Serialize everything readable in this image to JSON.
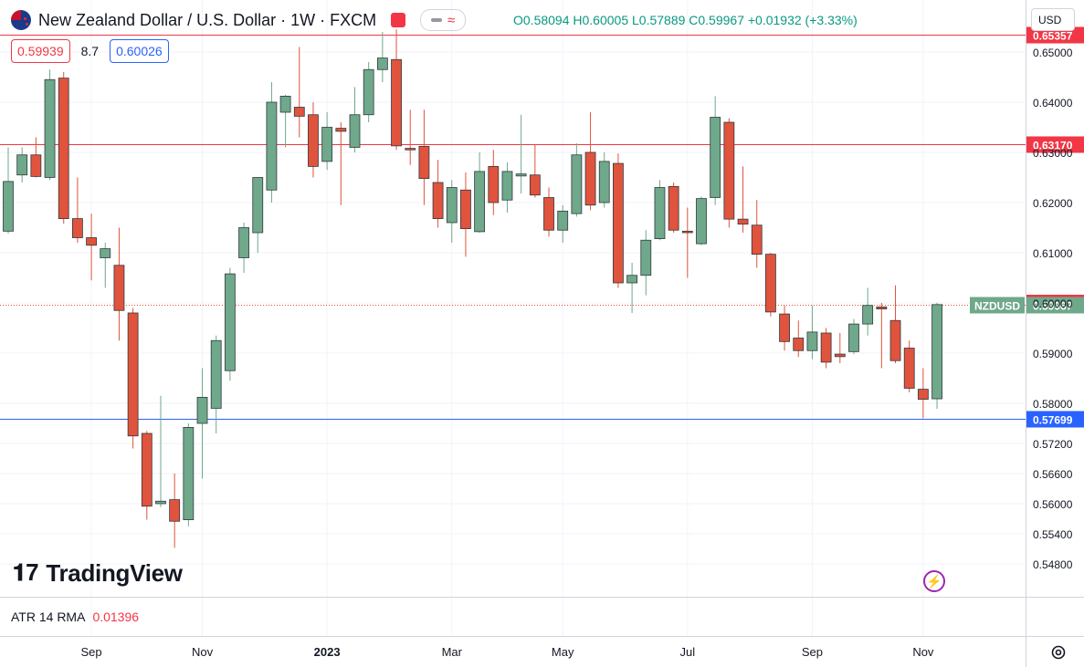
{
  "header": {
    "title": "New Zealand Dollar / U.S. Dollar · 1W · FXCM",
    "ohlc": "O0.58094  H0.60005  L0.57889  C0.59967  +0.01932 (+3.33%)",
    "sell_price": "0.59939",
    "spread": "8.7",
    "buy_price": "0.60026",
    "currency": "USD"
  },
  "logo_text": "TradingView",
  "atr": {
    "label": "ATR 14 RMA",
    "value": "0.01396"
  },
  "chart_data": {
    "type": "candlestick",
    "symbol": "NZDUSD",
    "timeframe": "1W",
    "y_ticks": [
      0.548,
      0.554,
      0.56,
      0.566,
      0.572,
      0.58,
      0.59,
      0.6,
      0.61,
      0.62,
      0.63,
      0.64,
      0.65
    ],
    "y_tick_labels": [
      "0.54800",
      "0.55400",
      "0.56000",
      "0.56600",
      "0.57200",
      "0.58000",
      "0.59000",
      "0.60000",
      "0.61000",
      "0.62000",
      "0.63000",
      "0.64000",
      "0.65000"
    ],
    "x_labels": [
      "Sep",
      "Nov",
      "2023",
      "Mar",
      "May",
      "Jul",
      "Sep",
      "Nov"
    ],
    "x_label_candle_index": [
      6,
      14,
      23,
      32,
      40,
      49,
      58,
      66
    ],
    "horizontal_lines": [
      {
        "value": 0.6535,
        "label": "0.65357",
        "color": "#f23645"
      },
      {
        "value": 0.6317,
        "label": "0.63170",
        "color": "#f23645"
      },
      {
        "value": 0.57699,
        "label": "0.57699",
        "color": "#2962ff"
      }
    ],
    "price_tags": [
      {
        "value": 0.6,
        "label": "0.60000",
        "color": "#f23645"
      }
    ],
    "current": {
      "value": 0.59967,
      "symbol": "NZDUSD",
      "label": "0.59967",
      "color": "#6fa88a"
    },
    "up_color": "#6fa88a",
    "down_color": "#e0533d",
    "candles": [
      {
        "o": 0.6143,
        "h": 0.631,
        "l": 0.6138,
        "c": 0.6242
      },
      {
        "o": 0.6255,
        "h": 0.631,
        "l": 0.624,
        "c": 0.6295
      },
      {
        "o": 0.6295,
        "h": 0.633,
        "l": 0.625,
        "c": 0.6252
      },
      {
        "o": 0.625,
        "h": 0.6465,
        "l": 0.6245,
        "c": 0.6445
      },
      {
        "o": 0.6448,
        "h": 0.646,
        "l": 0.6158,
        "c": 0.6168
      },
      {
        "o": 0.6168,
        "h": 0.625,
        "l": 0.612,
        "c": 0.613
      },
      {
        "o": 0.613,
        "h": 0.6178,
        "l": 0.6045,
        "c": 0.6115
      },
      {
        "o": 0.609,
        "h": 0.612,
        "l": 0.603,
        "c": 0.6108
      },
      {
        "o": 0.6075,
        "h": 0.615,
        "l": 0.5925,
        "c": 0.5985
      },
      {
        "o": 0.598,
        "h": 0.599,
        "l": 0.571,
        "c": 0.5735
      },
      {
        "o": 0.574,
        "h": 0.5745,
        "l": 0.5568,
        "c": 0.5595
      },
      {
        "o": 0.56,
        "h": 0.5815,
        "l": 0.5593,
        "c": 0.5605
      },
      {
        "o": 0.5608,
        "h": 0.566,
        "l": 0.5512,
        "c": 0.5565
      },
      {
        "o": 0.5568,
        "h": 0.576,
        "l": 0.5555,
        "c": 0.5752
      },
      {
        "o": 0.576,
        "h": 0.587,
        "l": 0.565,
        "c": 0.5812
      },
      {
        "o": 0.579,
        "h": 0.5935,
        "l": 0.574,
        "c": 0.5925
      },
      {
        "o": 0.5865,
        "h": 0.607,
        "l": 0.5845,
        "c": 0.6058
      },
      {
        "o": 0.609,
        "h": 0.616,
        "l": 0.606,
        "c": 0.615
      },
      {
        "o": 0.614,
        "h": 0.625,
        "l": 0.61,
        "c": 0.625
      },
      {
        "o": 0.6225,
        "h": 0.644,
        "l": 0.62,
        "c": 0.64
      },
      {
        "o": 0.638,
        "h": 0.6415,
        "l": 0.631,
        "c": 0.6412
      },
      {
        "o": 0.639,
        "h": 0.651,
        "l": 0.633,
        "c": 0.6372
      },
      {
        "o": 0.6375,
        "h": 0.64,
        "l": 0.625,
        "c": 0.6272
      },
      {
        "o": 0.6282,
        "h": 0.638,
        "l": 0.6265,
        "c": 0.635
      },
      {
        "o": 0.6348,
        "h": 0.636,
        "l": 0.6195,
        "c": 0.6342
      },
      {
        "o": 0.631,
        "h": 0.643,
        "l": 0.63,
        "c": 0.6375
      },
      {
        "o": 0.6375,
        "h": 0.648,
        "l": 0.636,
        "c": 0.6465
      },
      {
        "o": 0.6465,
        "h": 0.654,
        "l": 0.644,
        "c": 0.6488
      },
      {
        "o": 0.6485,
        "h": 0.6545,
        "l": 0.6305,
        "c": 0.6313
      },
      {
        "o": 0.6308,
        "h": 0.6385,
        "l": 0.6275,
        "c": 0.6305
      },
      {
        "o": 0.6312,
        "h": 0.6385,
        "l": 0.6195,
        "c": 0.6248
      },
      {
        "o": 0.624,
        "h": 0.6285,
        "l": 0.615,
        "c": 0.6168
      },
      {
        "o": 0.616,
        "h": 0.6245,
        "l": 0.612,
        "c": 0.623
      },
      {
        "o": 0.6225,
        "h": 0.626,
        "l": 0.6092,
        "c": 0.6148
      },
      {
        "o": 0.6142,
        "h": 0.63,
        "l": 0.614,
        "c": 0.6262
      },
      {
        "o": 0.6272,
        "h": 0.6305,
        "l": 0.6175,
        "c": 0.62
      },
      {
        "o": 0.6205,
        "h": 0.628,
        "l": 0.618,
        "c": 0.6262
      },
      {
        "o": 0.6253,
        "h": 0.6375,
        "l": 0.6218,
        "c": 0.6257
      },
      {
        "o": 0.6255,
        "h": 0.6315,
        "l": 0.621,
        "c": 0.6215
      },
      {
        "o": 0.621,
        "h": 0.623,
        "l": 0.6132,
        "c": 0.6145
      },
      {
        "o": 0.6145,
        "h": 0.6195,
        "l": 0.612,
        "c": 0.6183
      },
      {
        "o": 0.6178,
        "h": 0.6318,
        "l": 0.6172,
        "c": 0.6295
      },
      {
        "o": 0.63,
        "h": 0.638,
        "l": 0.6185,
        "c": 0.6195
      },
      {
        "o": 0.62,
        "h": 0.63,
        "l": 0.619,
        "c": 0.6282
      },
      {
        "o": 0.6278,
        "h": 0.6298,
        "l": 0.603,
        "c": 0.604
      },
      {
        "o": 0.604,
        "h": 0.608,
        "l": 0.598,
        "c": 0.6055
      },
      {
        "o": 0.6055,
        "h": 0.6145,
        "l": 0.6015,
        "c": 0.6125
      },
      {
        "o": 0.6128,
        "h": 0.6245,
        "l": 0.6125,
        "c": 0.623
      },
      {
        "o": 0.6232,
        "h": 0.624,
        "l": 0.614,
        "c": 0.6145
      },
      {
        "o": 0.6143,
        "h": 0.619,
        "l": 0.605,
        "c": 0.614
      },
      {
        "o": 0.6118,
        "h": 0.6212,
        "l": 0.6115,
        "c": 0.6208
      },
      {
        "o": 0.621,
        "h": 0.6412,
        "l": 0.6195,
        "c": 0.637
      },
      {
        "o": 0.636,
        "h": 0.6368,
        "l": 0.615,
        "c": 0.6167
      },
      {
        "o": 0.6167,
        "h": 0.6272,
        "l": 0.614,
        "c": 0.6157
      },
      {
        "o": 0.6155,
        "h": 0.6205,
        "l": 0.607,
        "c": 0.6097
      },
      {
        "o": 0.6097,
        "h": 0.61,
        "l": 0.5973,
        "c": 0.5982
      },
      {
        "o": 0.5978,
        "h": 0.5995,
        "l": 0.5905,
        "c": 0.5923
      },
      {
        "o": 0.593,
        "h": 0.5965,
        "l": 0.5892,
        "c": 0.5905
      },
      {
        "o": 0.5905,
        "h": 0.5995,
        "l": 0.5888,
        "c": 0.5942
      },
      {
        "o": 0.594,
        "h": 0.595,
        "l": 0.587,
        "c": 0.5882
      },
      {
        "o": 0.5898,
        "h": 0.594,
        "l": 0.588,
        "c": 0.5893
      },
      {
        "o": 0.5903,
        "h": 0.5968,
        "l": 0.5898,
        "c": 0.5958
      },
      {
        "o": 0.5958,
        "h": 0.603,
        "l": 0.5935,
        "c": 0.5995
      },
      {
        "o": 0.5992,
        "h": 0.6,
        "l": 0.587,
        "c": 0.5988
      },
      {
        "o": 0.5965,
        "h": 0.6035,
        "l": 0.588,
        "c": 0.5885
      },
      {
        "o": 0.591,
        "h": 0.5925,
        "l": 0.5822,
        "c": 0.583
      },
      {
        "o": 0.5828,
        "h": 0.587,
        "l": 0.577,
        "c": 0.5808
      },
      {
        "o": 0.5809,
        "h": 0.60005,
        "l": 0.57889,
        "c": 0.59967
      }
    ]
  }
}
